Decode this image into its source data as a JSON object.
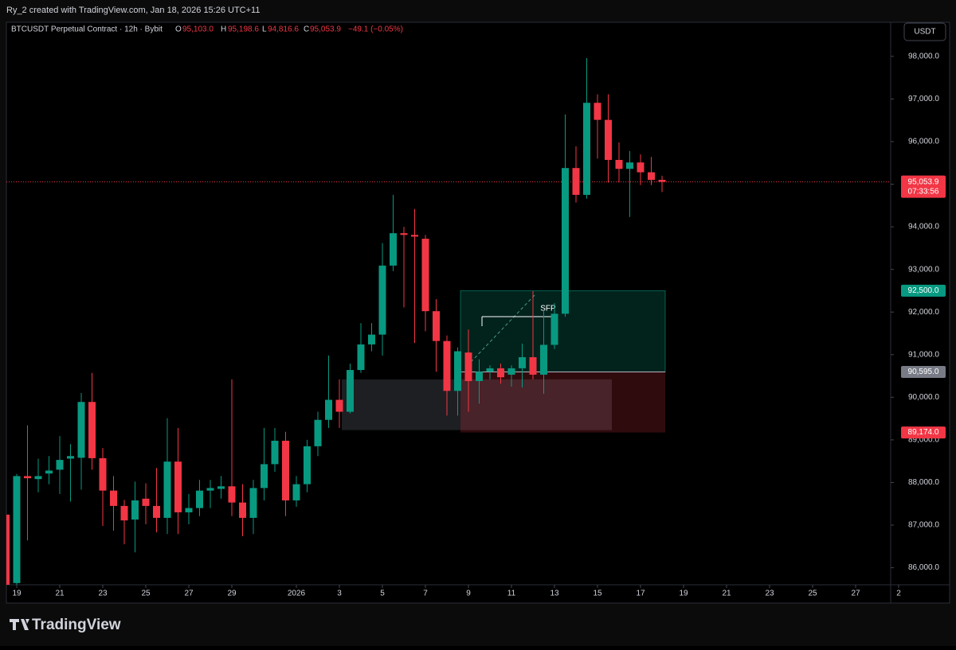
{
  "header": {
    "credit": "Ry_2 created with TradingView.com, Jan 18, 2026 15:26 UTC+11"
  },
  "legend": {
    "symbol": "BTCUSDT Perpetual Contract · 12h · Bybit",
    "o_label": "O",
    "o": "95,103.0",
    "h_label": "H",
    "h": "95,198.6",
    "l_label": "L",
    "l": "94,816.6",
    "c_label": "C",
    "c": "95,053.9",
    "change": "−49.1 (−0.05%)"
  },
  "currency_button": "USDT",
  "footer": {
    "brand": "TradingView"
  },
  "chart_data": {
    "type": "candlestick",
    "up_color": "#089981",
    "down_color": "#f23645",
    "candles": [
      [
        87245,
        87300,
        85550,
        85600
      ],
      [
        85640,
        88200,
        85600,
        88150
      ],
      [
        88150,
        89340,
        86640,
        88100
      ],
      [
        88080,
        88560,
        87770,
        88150
      ],
      [
        88210,
        88620,
        87960,
        88280
      ],
      [
        88300,
        89090,
        87730,
        88530
      ],
      [
        88560,
        88900,
        87550,
        88620
      ],
      [
        88580,
        90100,
        87830,
        89890
      ],
      [
        89890,
        90570,
        88300,
        88570
      ],
      [
        88570,
        88810,
        86980,
        87810
      ],
      [
        87810,
        88150,
        86870,
        87450
      ],
      [
        87450,
        87590,
        86550,
        87110
      ],
      [
        87130,
        88020,
        86360,
        87580
      ],
      [
        87620,
        87980,
        87020,
        87450
      ],
      [
        87450,
        88340,
        86830,
        87170
      ],
      [
        87170,
        89510,
        86790,
        88490
      ],
      [
        88490,
        89280,
        86790,
        87300
      ],
      [
        87300,
        87730,
        87020,
        87400
      ],
      [
        87400,
        88060,
        87210,
        87810
      ],
      [
        87810,
        88060,
        87400,
        87870
      ],
      [
        87850,
        88150,
        87620,
        87910
      ],
      [
        87910,
        90420,
        87210,
        87530
      ],
      [
        87530,
        87960,
        86740,
        87170
      ],
      [
        87170,
        88060,
        86790,
        87870
      ],
      [
        87870,
        89280,
        87580,
        88430
      ],
      [
        88430,
        89280,
        88250,
        88980
      ],
      [
        88980,
        89190,
        87210,
        87580
      ],
      [
        87580,
        88150,
        87430,
        87960
      ],
      [
        87960,
        89000,
        87770,
        88850
      ],
      [
        88850,
        89660,
        88620,
        89470
      ],
      [
        89470,
        90980,
        89280,
        89940
      ],
      [
        89940,
        90420,
        89280,
        89660
      ],
      [
        89660,
        90790,
        89620,
        90640
      ],
      [
        90640,
        91740,
        90570,
        91240
      ],
      [
        91240,
        91740,
        91080,
        91470
      ],
      [
        91470,
        93620,
        90980,
        93090
      ],
      [
        93090,
        94750,
        92960,
        93850
      ],
      [
        93850,
        94000,
        92110,
        93810
      ],
      [
        93810,
        94420,
        91270,
        93770
      ],
      [
        93720,
        93810,
        91550,
        92020
      ],
      [
        92020,
        92300,
        90600,
        91320
      ],
      [
        91320,
        91450,
        89570,
        90150
      ],
      [
        90150,
        91170,
        89570,
        91080
      ],
      [
        91050,
        91590,
        89660,
        90380
      ],
      [
        90380,
        90890,
        89850,
        90600
      ],
      [
        90600,
        90750,
        90420,
        90680
      ],
      [
        90680,
        90790,
        90320,
        90470
      ],
      [
        90530,
        90750,
        90250,
        90680
      ],
      [
        90680,
        91260,
        90230,
        90940
      ],
      [
        90940,
        92490,
        90420,
        90530
      ],
      [
        90530,
        92020,
        90080,
        91230
      ],
      [
        91230,
        92210,
        91130,
        91960
      ],
      [
        91960,
        96640,
        91890,
        95380
      ],
      [
        95380,
        95890,
        94570,
        94750
      ],
      [
        94750,
        97960,
        94660,
        96910
      ],
      [
        96910,
        97110,
        95600,
        96510
      ],
      [
        96510,
        97110,
        95040,
        95570
      ],
      [
        95570,
        95980,
        95040,
        95360
      ],
      [
        95360,
        95780,
        94230,
        95510
      ],
      [
        95510,
        95700,
        94980,
        95280
      ],
      [
        95280,
        95640,
        94980,
        95100
      ],
      [
        95103,
        95198.6,
        94816.6,
        95053.9
      ]
    ],
    "ylim": [
      85600,
      98800
    ],
    "yticks": [
      {
        "value": 86000,
        "label": "86,000.0"
      },
      {
        "value": 87000,
        "label": "87,000.0"
      },
      {
        "value": 88000,
        "label": "88,000.0"
      },
      {
        "value": 89000,
        "label": "89,000.0"
      },
      {
        "value": 90000,
        "label": "90,000.0"
      },
      {
        "value": 91000,
        "label": "91,000.0"
      },
      {
        "value": 92000,
        "label": "92,000.0"
      },
      {
        "value": 93000,
        "label": "93,000.0"
      },
      {
        "value": 94000,
        "label": "94,000.0"
      },
      {
        "value": 95000,
        "label": "95,000.0"
      },
      {
        "value": 96000,
        "label": "96,000.0"
      },
      {
        "value": 97000,
        "label": "97,000.0"
      },
      {
        "value": 98000,
        "label": "98,000.0"
      }
    ],
    "xticks": [
      {
        "value": 1,
        "label": "19"
      },
      {
        "value": 5,
        "label": "21"
      },
      {
        "value": 9,
        "label": "23"
      },
      {
        "value": 13,
        "label": "25"
      },
      {
        "value": 17,
        "label": "27"
      },
      {
        "value": 21,
        "label": "29"
      },
      {
        "value": 27,
        "label": "2026"
      },
      {
        "value": 31,
        "label": "3"
      },
      {
        "value": 35,
        "label": "5"
      },
      {
        "value": 39,
        "label": "7"
      },
      {
        "value": 43,
        "label": "9"
      },
      {
        "value": 47,
        "label": "11"
      },
      {
        "value": 51,
        "label": "13"
      },
      {
        "value": 55,
        "label": "15"
      },
      {
        "value": 59,
        "label": "17"
      },
      {
        "value": 63,
        "label": "19"
      },
      {
        "value": 67,
        "label": "21"
      },
      {
        "value": 71,
        "label": "23"
      },
      {
        "value": 75,
        "label": "25"
      },
      {
        "value": 79,
        "label": "27"
      },
      {
        "value": 83,
        "label": "2"
      }
    ],
    "last_price": {
      "value": 95053.9,
      "label": "95,053.9",
      "countdown": "07:33:56"
    },
    "zone": [
      89230,
      90420
    ],
    "position": {
      "target": {
        "value": 92500,
        "label": "92,500.0"
      },
      "entry": {
        "value": 90595,
        "label": "90,595.0"
      },
      "stop": {
        "value": 89174,
        "label": "89,174.0"
      }
    },
    "annotation": "SFP"
  }
}
